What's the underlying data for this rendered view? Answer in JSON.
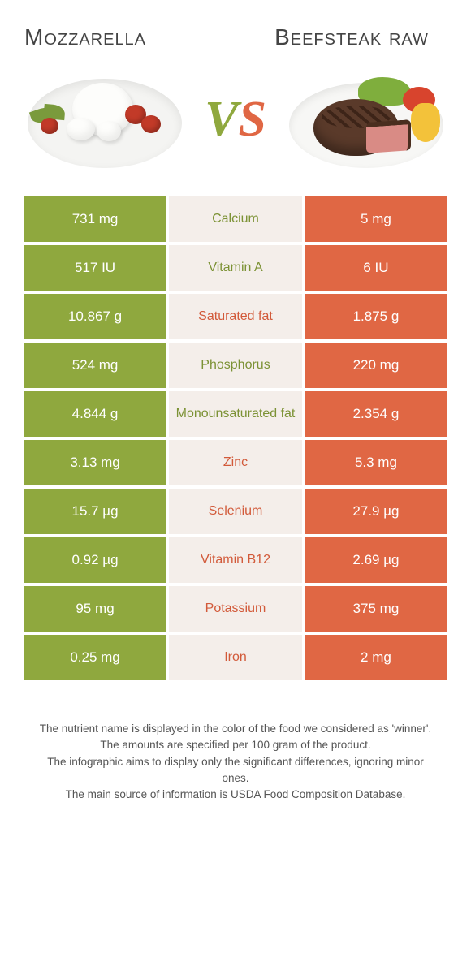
{
  "titles": {
    "left": "Mozzarella",
    "right": "Beefsteak raw"
  },
  "vs": {
    "v": "V",
    "s": "S"
  },
  "colors": {
    "green": "#8fa83e",
    "orange": "#e06744",
    "mid_bg": "#f4eeea",
    "green_text": "#7c9235",
    "orange_text": "#d25a3a"
  },
  "rows": [
    {
      "left": "731 mg",
      "label": "Calcium",
      "right": "5 mg",
      "winner": "left"
    },
    {
      "left": "517 IU",
      "label": "Vitamin A",
      "right": "6 IU",
      "winner": "left"
    },
    {
      "left": "10.867 g",
      "label": "Saturated fat",
      "right": "1.875 g",
      "winner": "right"
    },
    {
      "left": "524 mg",
      "label": "Phosphorus",
      "right": "220 mg",
      "winner": "left"
    },
    {
      "left": "4.844 g",
      "label": "Monounsaturated fat",
      "right": "2.354 g",
      "winner": "left"
    },
    {
      "left": "3.13 mg",
      "label": "Zinc",
      "right": "5.3 mg",
      "winner": "right"
    },
    {
      "left": "15.7 µg",
      "label": "Selenium",
      "right": "27.9 µg",
      "winner": "right"
    },
    {
      "left": "0.92 µg",
      "label": "Vitamin B12",
      "right": "2.69 µg",
      "winner": "right"
    },
    {
      "left": "95 mg",
      "label": "Potassium",
      "right": "375 mg",
      "winner": "right"
    },
    {
      "left": "0.25 mg",
      "label": "Iron",
      "right": "2 mg",
      "winner": "right"
    }
  ],
  "footnotes": [
    "The nutrient name is displayed in the color of the food we considered as 'winner'.",
    "The amounts are specified per 100 gram of the product.",
    "The infographic aims to display only the significant differences, ignoring minor ones.",
    "The main source of information is USDA Food Composition Database."
  ]
}
